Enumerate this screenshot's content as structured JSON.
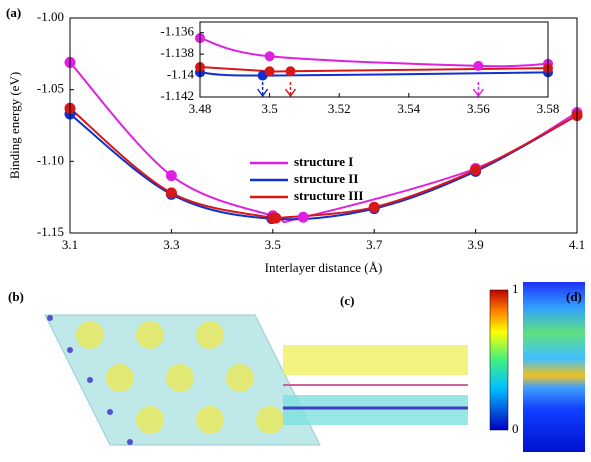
{
  "chart_data": [
    {
      "type": "line",
      "panel_label": "(a)",
      "x_label": "Interlayer distance (Å)",
      "y_label": "Binding energy (eV)",
      "xlim": [
        3.1,
        4.1
      ],
      "ylim": [
        -1.15,
        -1.0
      ],
      "xticks": [
        3.1,
        3.3,
        3.5,
        3.7,
        3.9,
        4.1
      ],
      "yticks": [
        {
          "value": -1.0,
          "label": "-1.00"
        },
        -1.05,
        {
          "value": -1.1,
          "label": "-1.10"
        },
        -1.15
      ],
      "legend": "lower center",
      "series": [
        {
          "name": "structure I",
          "color": "#e020e0",
          "x": [
            3.1,
            3.3,
            3.5,
            3.56,
            3.9,
            4.1
          ],
          "values": [
            -1.031,
            -1.11,
            -1.138,
            -1.139,
            -1.105,
            -1.066
          ]
        },
        {
          "name": "structure II",
          "color": "#1030d0",
          "x": [
            3.1,
            3.3,
            3.498,
            3.7,
            3.9,
            4.1
          ],
          "values": [
            -1.067,
            -1.123,
            -1.14,
            -1.133,
            -1.107,
            -1.068
          ]
        },
        {
          "name": "structure III",
          "color": "#d81818",
          "x": [
            3.1,
            3.3,
            3.5,
            3.506,
            3.7,
            3.9,
            4.1
          ],
          "values": [
            -1.063,
            -1.122,
            -1.1396,
            -1.1396,
            -1.132,
            -1.106,
            -1.068
          ]
        }
      ]
    },
    {
      "type": "line",
      "xlim": [
        3.48,
        3.58
      ],
      "ylim": [
        -1.142,
        -1.135
      ],
      "xticks": [
        3.48,
        3.5,
        3.52,
        3.54,
        3.56,
        3.58
      ],
      "yticks": [
        -1.136,
        -1.138,
        -1.14,
        -1.142
      ],
      "series": [
        {
          "color": "#e020e0",
          "x": [
            3.48,
            3.5,
            3.56,
            3.58
          ],
          "values": [
            -1.1365,
            -1.1382,
            -1.1391,
            -1.1389
          ]
        },
        {
          "color": "#1030d0",
          "x": [
            3.48,
            3.498,
            3.58
          ],
          "values": [
            -1.1397,
            -1.14,
            -1.1397
          ]
        },
        {
          "color": "#d81818",
          "x": [
            3.48,
            3.5,
            3.506,
            3.58
          ],
          "values": [
            -1.1392,
            -1.1396,
            -1.1396,
            -1.1393
          ]
        }
      ],
      "arrows": [
        {
          "x": 3.498,
          "color": "#1030d0"
        },
        {
          "x": 3.506,
          "color": "#d81818"
        },
        {
          "x": 3.56,
          "color": "#e020e0"
        }
      ]
    }
  ],
  "panels": [
    {
      "label": "(b)"
    },
    {
      "label": "(c)"
    },
    {
      "label": "(d)",
      "colorbar_ticks": [
        1,
        0
      ]
    }
  ]
}
